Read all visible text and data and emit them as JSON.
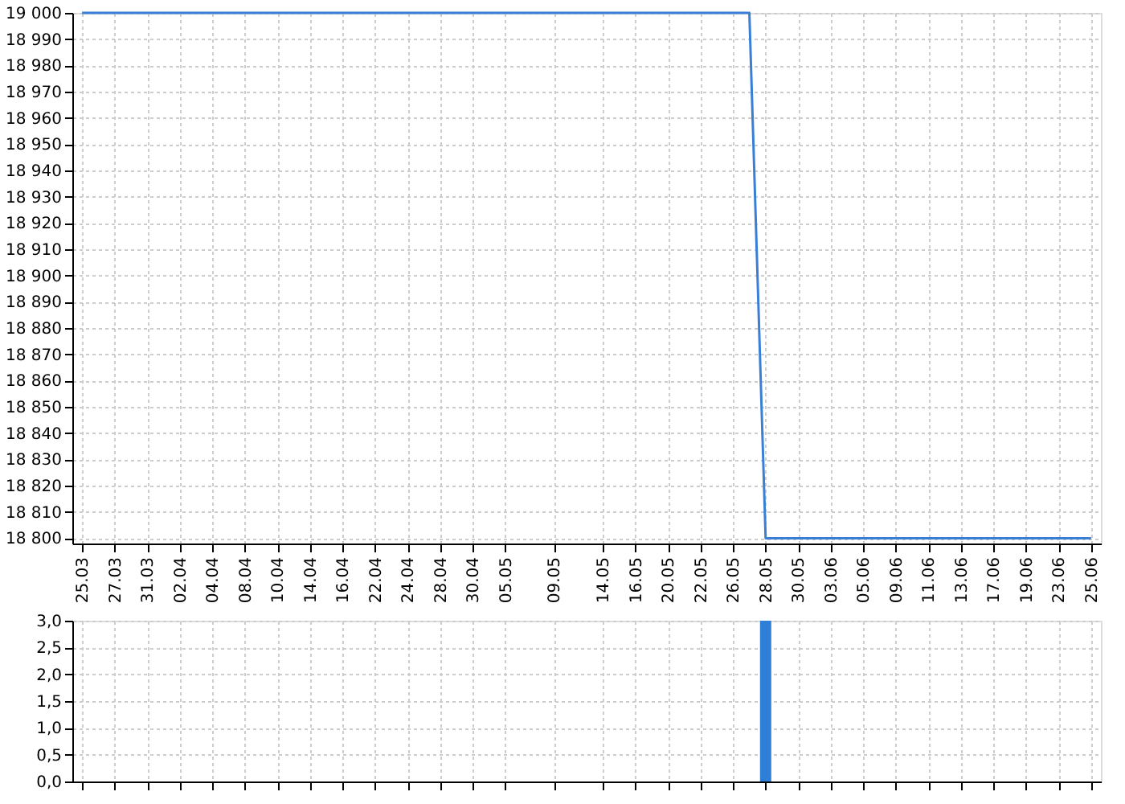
{
  "chart_data": [
    {
      "type": "line",
      "color": "#3a7fd6",
      "grid": true,
      "line_style": "solid",
      "marker": "none",
      "categories": [
        "25.03",
        null,
        "27.03",
        null,
        "31.03",
        null,
        "02.04",
        null,
        "04.04",
        null,
        "08.04",
        null,
        "10.04",
        null,
        "14.04",
        null,
        "16.04",
        null,
        "22.04",
        null,
        "24.04",
        null,
        "28.04",
        null,
        "30.04",
        null,
        "05.05",
        null,
        null,
        "09.05",
        null,
        null,
        "14.05",
        null,
        "16.05",
        null,
        "20.05",
        null,
        "22.05",
        null,
        "26.05",
        null,
        "28.05",
        null,
        "30.05",
        null,
        "03.06",
        null,
        "05.06",
        null,
        "09.06",
        null,
        "11.06",
        null,
        "13.06",
        null,
        "17.06",
        null,
        "19.06",
        null,
        "23.06",
        null,
        "25.06"
      ],
      "values": [
        19000,
        19000,
        19000,
        19000,
        19000,
        19000,
        19000,
        19000,
        19000,
        19000,
        19000,
        19000,
        19000,
        19000,
        19000,
        19000,
        19000,
        19000,
        19000,
        19000,
        19000,
        19000,
        19000,
        19000,
        19000,
        19000,
        19000,
        19000,
        19000,
        19000,
        19000,
        19000,
        19000,
        19000,
        19000,
        19000,
        19000,
        19000,
        19000,
        19000,
        19000,
        19000,
        18800,
        18800,
        18800,
        18800,
        18800,
        18800,
        18800,
        18800,
        18800,
        18800,
        18800,
        18800,
        18800,
        18800,
        18800,
        18800,
        18800,
        18800,
        18800,
        18800,
        18800
      ],
      "ylim": [
        18798,
        19000
      ],
      "yticks": [
        {
          "value": 18800,
          "label": "18 800"
        },
        {
          "value": 18810,
          "label": "18 810"
        },
        {
          "value": 18820,
          "label": "18 820"
        },
        {
          "value": 18830,
          "label": "18 830"
        },
        {
          "value": 18840,
          "label": "18 840"
        },
        {
          "value": 18850,
          "label": "18 850"
        },
        {
          "value": 18860,
          "label": "18 860"
        },
        {
          "value": 18870,
          "label": "18 870"
        },
        {
          "value": 18880,
          "label": "18 880"
        },
        {
          "value": 18890,
          "label": "18 890"
        },
        {
          "value": 18900,
          "label": "18 900"
        },
        {
          "value": 18910,
          "label": "18 910"
        },
        {
          "value": 18920,
          "label": "18 920"
        },
        {
          "value": 18930,
          "label": "18 930"
        },
        {
          "value": 18940,
          "label": "18 940"
        },
        {
          "value": 18950,
          "label": "18 950"
        },
        {
          "value": 18960,
          "label": "18 960"
        },
        {
          "value": 18970,
          "label": "18 970"
        },
        {
          "value": 18980,
          "label": "18 980"
        },
        {
          "value": 18990,
          "label": "18 990"
        },
        {
          "value": 19000,
          "label": "19 000"
        }
      ]
    },
    {
      "type": "bar",
      "color": "#2f7fd6",
      "grid": true,
      "tick_labels": "y",
      "categories": [
        "25.03",
        null,
        "27.03",
        null,
        "31.03",
        null,
        "02.04",
        null,
        "04.04",
        null,
        "08.04",
        null,
        "10.04",
        null,
        "14.04",
        null,
        "16.04",
        null,
        "22.04",
        null,
        "24.04",
        null,
        "28.04",
        null,
        "30.04",
        null,
        "05.05",
        null,
        null,
        "09.05",
        null,
        null,
        "14.05",
        null,
        "16.05",
        null,
        "20.05",
        null,
        "22.05",
        null,
        "26.05",
        null,
        "28.05",
        null,
        "30.05",
        null,
        "03.06",
        null,
        "05.06",
        null,
        "09.06",
        null,
        "11.06",
        null,
        "13.06",
        null,
        "17.06",
        null,
        "19.06",
        null,
        "23.06",
        null,
        "25.06"
      ],
      "values": [
        0,
        0,
        0,
        0,
        0,
        0,
        0,
        0,
        0,
        0,
        0,
        0,
        0,
        0,
        0,
        0,
        0,
        0,
        0,
        0,
        0,
        0,
        0,
        0,
        0,
        0,
        0,
        0,
        0,
        0,
        0,
        0,
        0,
        0,
        0,
        0,
        0,
        0,
        0,
        0,
        0,
        0,
        3,
        0,
        0,
        0,
        0,
        0,
        0,
        0,
        0,
        0,
        0,
        0,
        0,
        0,
        0,
        0,
        0,
        0,
        0,
        0,
        0
      ],
      "ylim": [
        0,
        3
      ],
      "yticks": [
        {
          "value": 0,
          "label": "0,0"
        },
        {
          "value": 0.5,
          "label": "0,5"
        },
        {
          "value": 1,
          "label": "1,0"
        },
        {
          "value": 1.5,
          "label": "1,5"
        },
        {
          "value": 2,
          "label": "2,0"
        },
        {
          "value": 2.5,
          "label": "2,5"
        },
        {
          "value": 3,
          "label": "3,0"
        }
      ]
    }
  ]
}
